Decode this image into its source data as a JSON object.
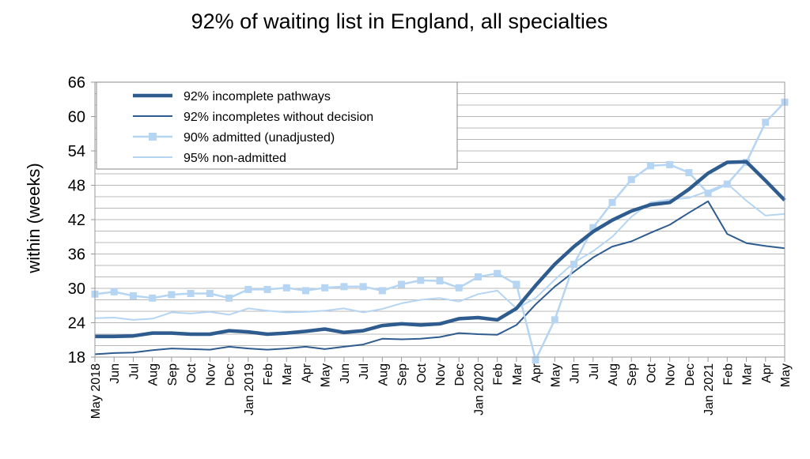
{
  "chart_data": {
    "type": "line",
    "title": "92% of waiting list in England, all specialties",
    "ylabel": "within  (weeks)",
    "xlabel": "",
    "ylim": [
      18,
      66
    ],
    "yticks": [
      18,
      24,
      30,
      36,
      42,
      48,
      54,
      60,
      66
    ],
    "grid": true,
    "grid_step": 2,
    "legend_position": "top-left",
    "x": [
      "May",
      "Jun",
      "Jul",
      "Aug",
      "Sep",
      "Oct",
      "Nov",
      "Dec",
      "Jan",
      "Feb",
      "Mar",
      "Apr",
      "May",
      "Jun",
      "Jul",
      "Aug",
      "Sep",
      "Oct",
      "Nov",
      "Dec",
      "Jan",
      "Feb",
      "Mar",
      "Apr",
      "May",
      "Jun",
      "Jul",
      "Aug",
      "Sep",
      "Oct",
      "Nov",
      "Dec",
      "Jan",
      "Feb",
      "Mar",
      "Apr",
      "May"
    ],
    "year_labels": [
      {
        "label": "2018",
        "index": 0
      },
      {
        "label": "2019",
        "index": 8
      },
      {
        "label": "2020",
        "index": 20
      },
      {
        "label": "2021",
        "index": 32
      }
    ],
    "series": [
      {
        "name": "92% incomplete pathways",
        "color": "#2e5c8f",
        "style": "thick",
        "values": [
          21.6,
          21.6,
          21.7,
          22.2,
          22.2,
          22.0,
          22.0,
          22.6,
          22.4,
          22.0,
          22.2,
          22.5,
          22.9,
          22.3,
          22.6,
          23.5,
          23.8,
          23.6,
          23.8,
          24.7,
          24.9,
          24.5,
          26.5,
          30.5,
          34.2,
          37.3,
          39.9,
          41.9,
          43.5,
          44.6,
          45.0,
          47.3,
          50.1,
          52.0,
          52.1,
          48.8,
          45.4
        ]
      },
      {
        "name": "92% incompletes without decision",
        "color": "#2e5c8f",
        "style": "thin",
        "values": [
          18.5,
          18.7,
          18.8,
          19.2,
          19.5,
          19.4,
          19.3,
          19.8,
          19.5,
          19.3,
          19.5,
          19.8,
          19.4,
          19.8,
          20.2,
          21.2,
          21.1,
          21.2,
          21.5,
          22.2,
          22.0,
          21.9,
          23.6,
          27.2,
          30.3,
          32.9,
          35.4,
          37.3,
          38.2,
          39.7,
          41.1,
          43.2,
          45.2,
          39.5,
          37.9,
          37.4,
          37.0
        ]
      },
      {
        "name": "90% admitted (unadjusted)",
        "color": "#b5d5f2",
        "style": "markers",
        "values": [
          29.0,
          29.4,
          28.7,
          28.3,
          28.9,
          29.1,
          29.1,
          28.3,
          29.8,
          29.8,
          30.1,
          29.6,
          30.1,
          30.3,
          30.3,
          29.6,
          30.7,
          31.4,
          31.3,
          30.1,
          32.0,
          32.6,
          30.7,
          17.5,
          24.5,
          34.2,
          40.6,
          45.0,
          49.0,
          51.4,
          51.6,
          50.2,
          46.6,
          48.2,
          52.0,
          59.0,
          62.5
        ]
      },
      {
        "name": "95% non-admitted",
        "color": "#b5d5f2",
        "style": "thin",
        "values": [
          24.8,
          24.9,
          24.5,
          24.7,
          25.8,
          25.6,
          25.9,
          25.4,
          26.5,
          26.1,
          25.8,
          25.9,
          26.1,
          26.5,
          25.8,
          26.4,
          27.4,
          28.0,
          28.3,
          27.7,
          29.0,
          29.6,
          26.5,
          28.3,
          31.5,
          34.5,
          36.5,
          39.0,
          42.5,
          45.0,
          45.5,
          45.8,
          47.0,
          48.3,
          45.3,
          42.7,
          43.0
        ]
      }
    ]
  }
}
